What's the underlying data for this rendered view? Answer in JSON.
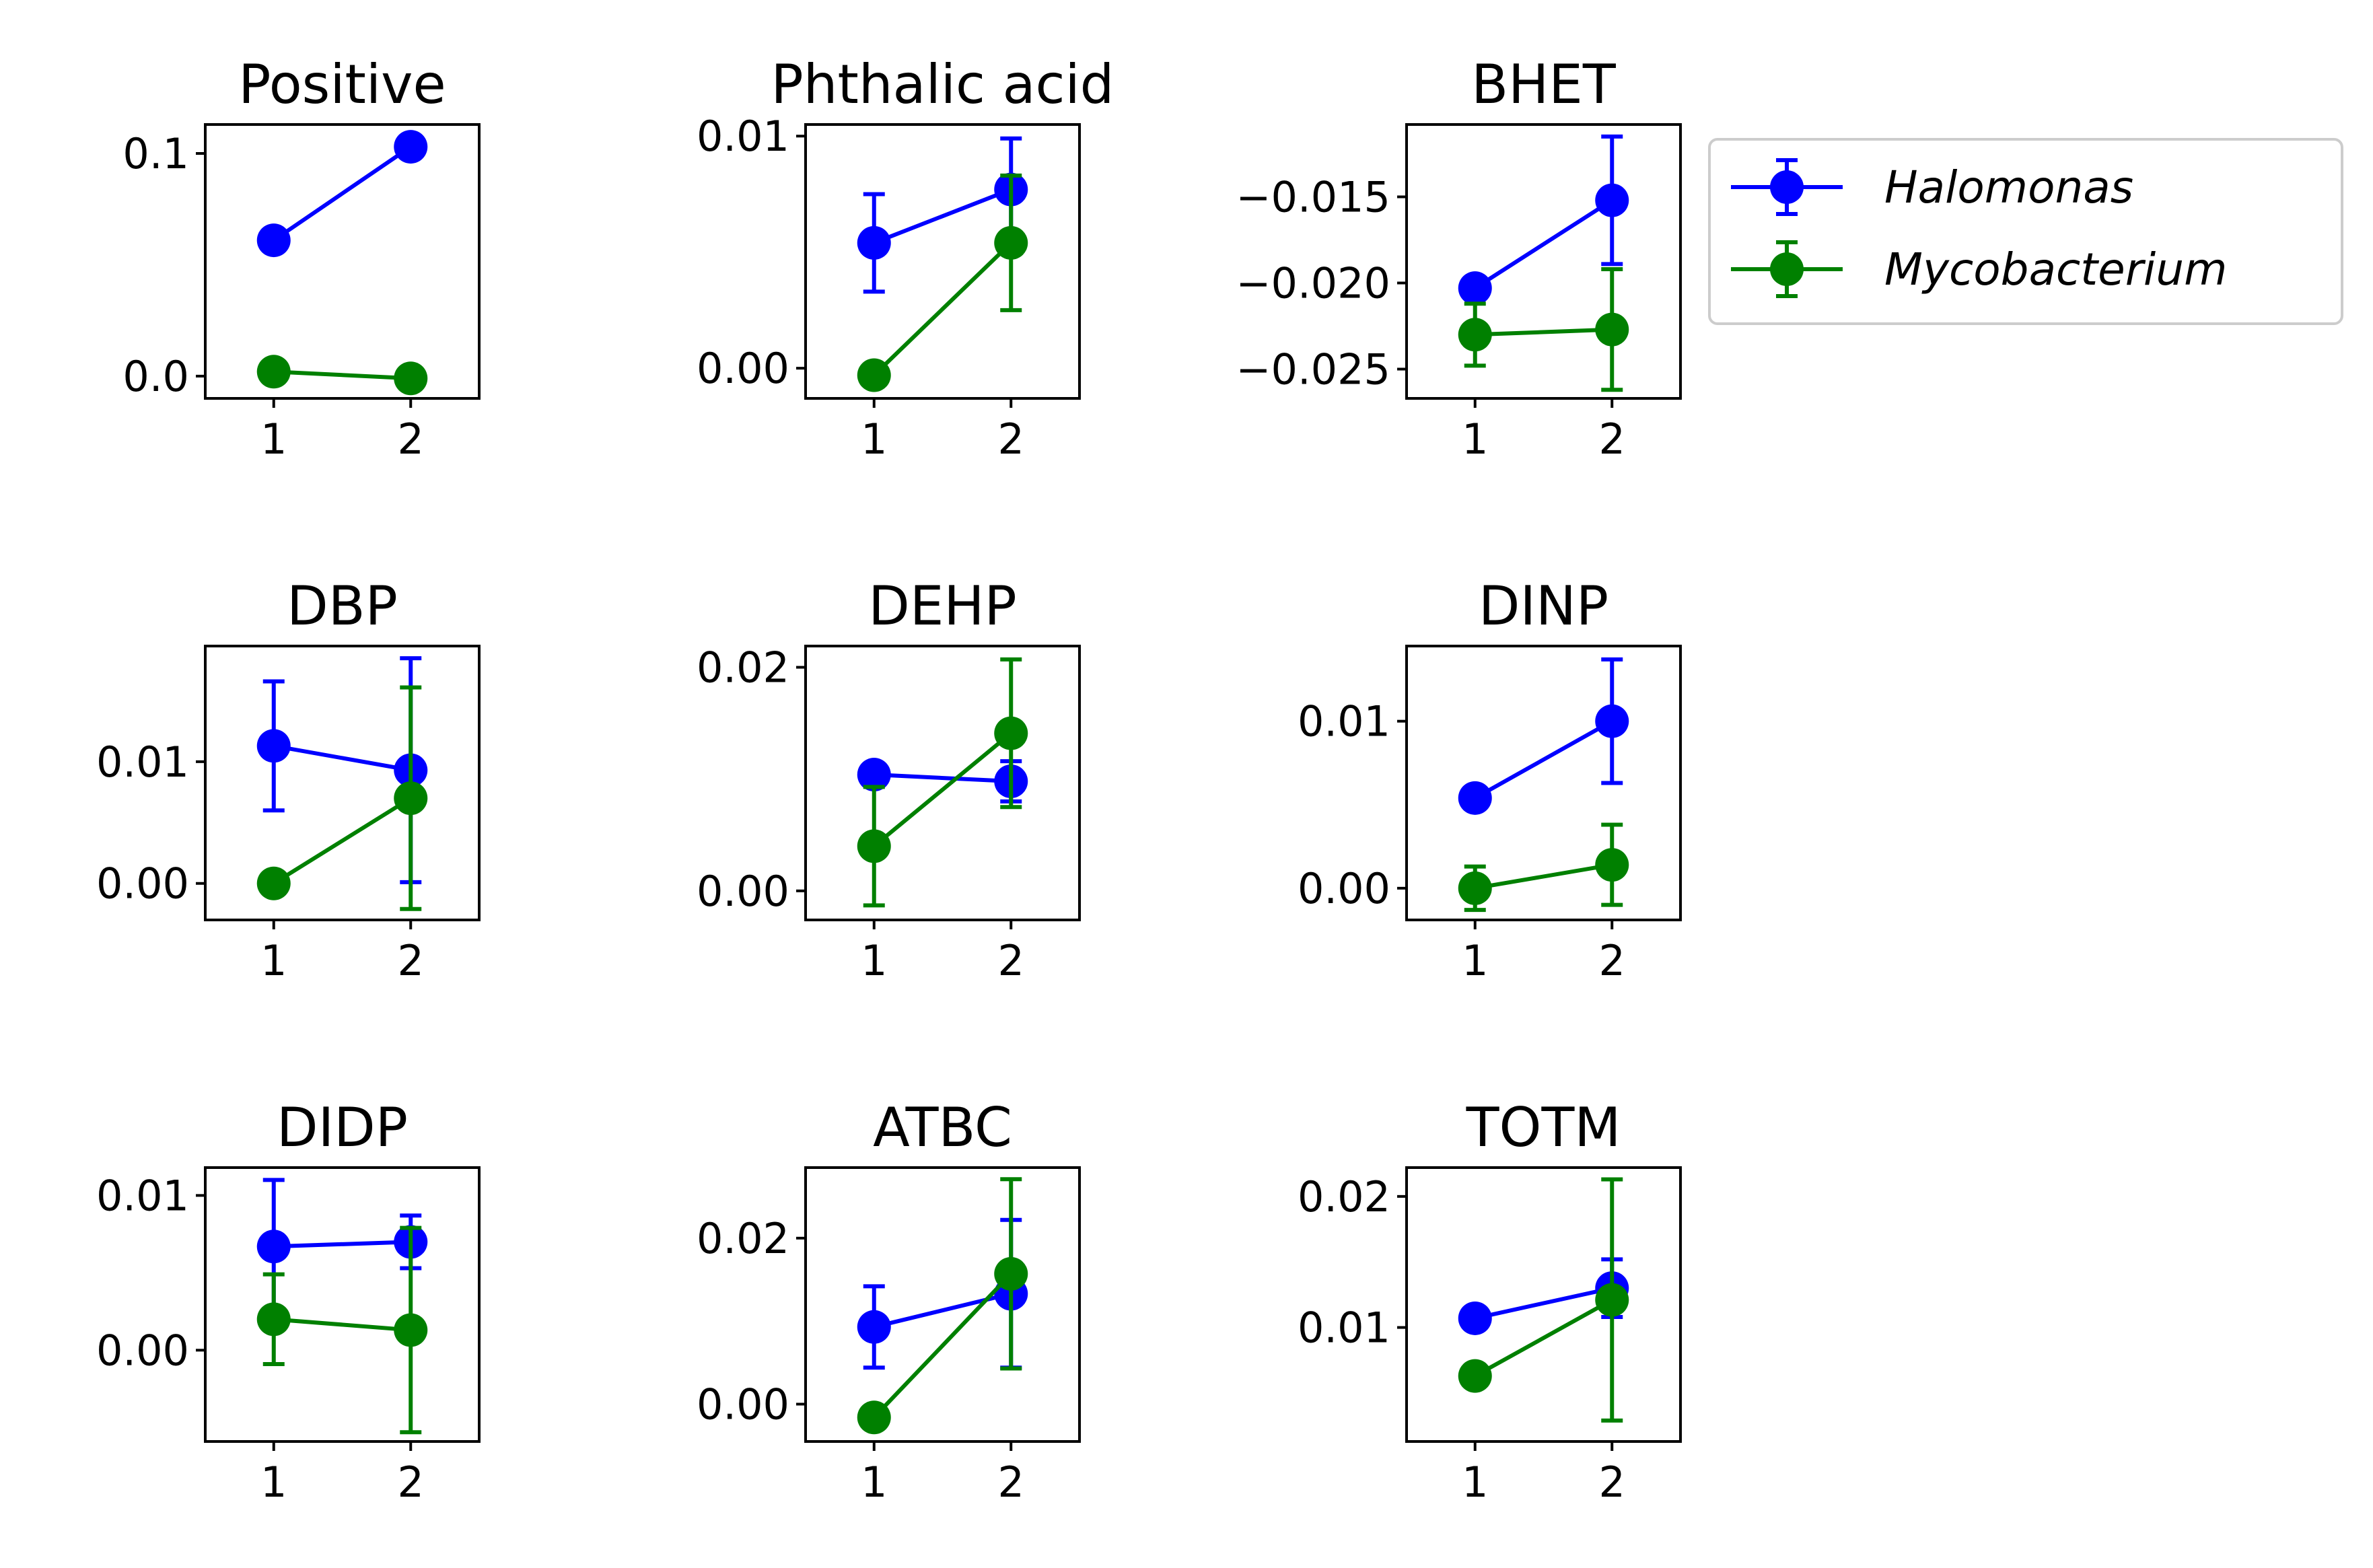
{
  "legend": [
    {
      "name": "Halomonas",
      "color": "#0000ff"
    },
    {
      "name": "Mycobacterium",
      "color": "#008000"
    }
  ],
  "chart_data": [
    {
      "type": "line",
      "title": "Positive",
      "x": [
        1,
        2
      ],
      "xticks": [
        "1",
        "2"
      ],
      "ylim": [
        -0.01,
        0.113
      ],
      "yticks": [
        0.0,
        0.1
      ],
      "ytick_labels": [
        "0.0",
        "0.1"
      ],
      "series": [
        {
          "name": "Halomonas",
          "values": [
            0.061,
            0.103
          ],
          "errors": [
            0.002,
            0.002
          ]
        },
        {
          "name": "Mycobacterium",
          "values": [
            0.002,
            -0.001
          ],
          "errors": [
            0.001,
            0.001
          ]
        }
      ]
    },
    {
      "type": "line",
      "title": "Phthalic acid",
      "x": [
        1,
        2
      ],
      "xticks": [
        "1",
        "2"
      ],
      "ylim": [
        -0.0013,
        0.0105
      ],
      "yticks": [
        0.0,
        0.01
      ],
      "ytick_labels": [
        "0.00",
        "0.01"
      ],
      "series": [
        {
          "name": "Halomonas",
          "values": [
            0.0054,
            0.0077
          ],
          "errors": [
            0.0021,
            0.0022
          ]
        },
        {
          "name": "Mycobacterium",
          "values": [
            -0.0003,
            0.0054
          ],
          "errors": [
            0.0002,
            0.0029
          ]
        }
      ]
    },
    {
      "type": "line",
      "title": "BHET",
      "x": [
        1,
        2
      ],
      "xticks": [
        "1",
        "2"
      ],
      "ylim": [
        -0.0267,
        -0.0108
      ],
      "yticks": [
        -0.015,
        -0.02,
        -0.025
      ],
      "ytick_labels": [
        "−0.015",
        "−0.020",
        "−0.025"
      ],
      "series": [
        {
          "name": "Halomonas",
          "values": [
            -0.0203,
            -0.0152
          ],
          "errors": [
            0.0006,
            0.0037
          ]
        },
        {
          "name": "Mycobacterium",
          "values": [
            -0.023,
            -0.0227
          ],
          "errors": [
            0.0018,
            0.0035
          ]
        }
      ]
    },
    {
      "type": "line",
      "title": "DBP",
      "x": [
        1,
        2
      ],
      "xticks": [
        "1",
        "2"
      ],
      "ylim": [
        -0.003,
        0.0195
      ],
      "yticks": [
        0.0,
        0.01
      ],
      "ytick_labels": [
        "0.00",
        "0.01"
      ],
      "series": [
        {
          "name": "Halomonas",
          "values": [
            0.0113,
            0.0093
          ],
          "errors": [
            0.0053,
            0.0092
          ]
        },
        {
          "name": "Mycobacterium",
          "values": [
            0.0,
            0.007
          ],
          "errors": [
            0.0003,
            0.0091
          ]
        }
      ]
    },
    {
      "type": "line",
      "title": "DEHP",
      "x": [
        1,
        2
      ],
      "xticks": [
        "1",
        "2"
      ],
      "ylim": [
        -0.0026,
        0.0219
      ],
      "yticks": [
        0.0,
        0.02
      ],
      "ytick_labels": [
        "0.00",
        "0.02"
      ],
      "series": [
        {
          "name": "Halomonas",
          "values": [
            0.0104,
            0.0098
          ],
          "errors": [
            0.0008,
            0.0018
          ]
        },
        {
          "name": "Mycobacterium",
          "values": [
            0.004,
            0.0141
          ],
          "errors": [
            0.0053,
            0.0066
          ]
        }
      ]
    },
    {
      "type": "line",
      "title": "DINP",
      "x": [
        1,
        2
      ],
      "xticks": [
        "1",
        "2"
      ],
      "ylim": [
        -0.0019,
        0.0145
      ],
      "yticks": [
        0.0,
        0.01
      ],
      "ytick_labels": [
        "0.00",
        "0.01"
      ],
      "series": [
        {
          "name": "Halomonas",
          "values": [
            0.0054,
            0.01
          ],
          "errors": [
            0.0004,
            0.0037
          ]
        },
        {
          "name": "Mycobacterium",
          "values": [
            0.0,
            0.0014
          ],
          "errors": [
            0.0013,
            0.0024
          ]
        }
      ]
    },
    {
      "type": "line",
      "title": "DIDP",
      "x": [
        1,
        2
      ],
      "xticks": [
        "1",
        "2"
      ],
      "ylim": [
        -0.0059,
        0.0118
      ],
      "yticks": [
        0.0,
        0.01
      ],
      "ytick_labels": [
        "0.00",
        "0.01"
      ],
      "series": [
        {
          "name": "Halomonas",
          "values": [
            0.0067,
            0.007
          ],
          "errors": [
            0.0043,
            0.0017
          ]
        },
        {
          "name": "Mycobacterium",
          "values": [
            0.002,
            0.0013
          ],
          "errors": [
            0.0029,
            0.0066
          ]
        }
      ]
    },
    {
      "type": "line",
      "title": "ATBC",
      "x": [
        1,
        2
      ],
      "xticks": [
        "1",
        "2"
      ],
      "ylim": [
        -0.0045,
        0.0285
      ],
      "yticks": [
        0.0,
        0.02
      ],
      "ytick_labels": [
        "0.00",
        "0.02"
      ],
      "series": [
        {
          "name": "Halomonas",
          "values": [
            0.0093,
            0.0133
          ],
          "errors": [
            0.0049,
            0.0089
          ]
        },
        {
          "name": "Mycobacterium",
          "values": [
            -0.0016,
            0.0157
          ],
          "errors": [
            0.0004,
            0.0114
          ]
        }
      ]
    },
    {
      "type": "line",
      "title": "TOTM",
      "x": [
        1,
        2
      ],
      "xticks": [
        "1",
        "2"
      ],
      "ylim": [
        0.0013,
        0.0222
      ],
      "yticks": [
        0.01,
        0.02
      ],
      "ytick_labels": [
        "0.01",
        "0.02"
      ],
      "series": [
        {
          "name": "Halomonas",
          "values": [
            0.0107,
            0.013
          ],
          "errors": [
            0.0006,
            0.0022
          ]
        },
        {
          "name": "Mycobacterium",
          "values": [
            0.0063,
            0.0121
          ],
          "errors": [
            0.0007,
            0.0092
          ]
        }
      ]
    }
  ]
}
